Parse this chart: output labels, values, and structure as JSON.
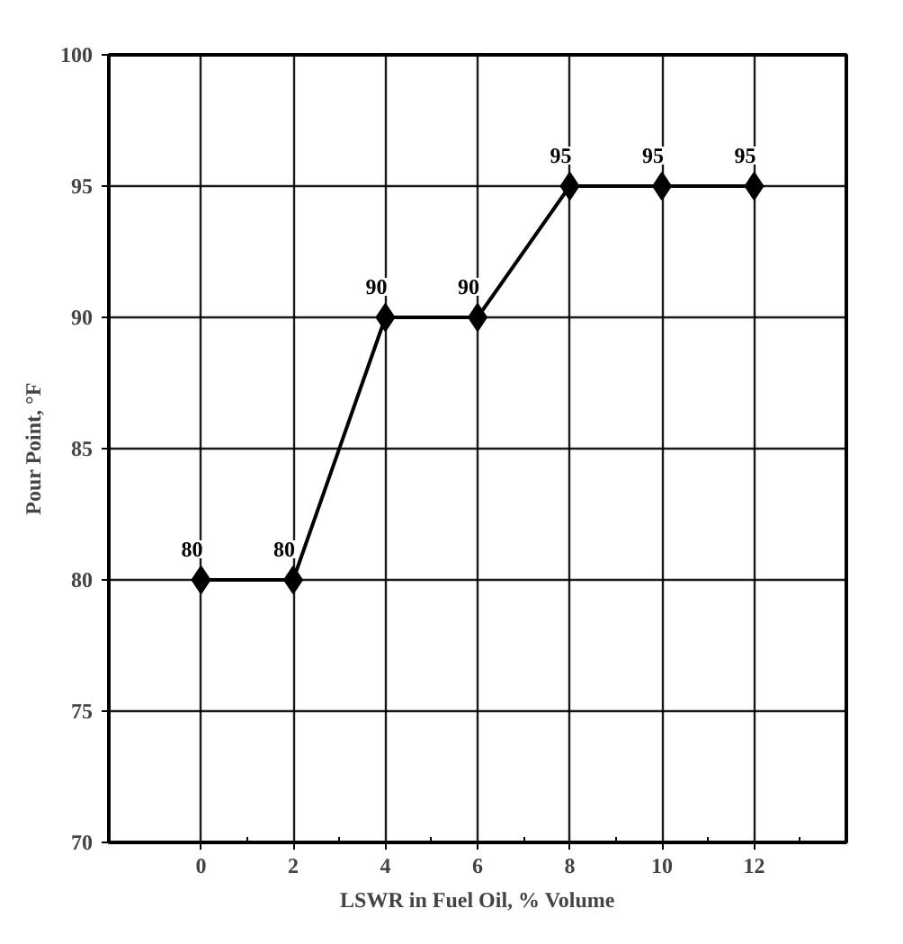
{
  "chart_data": {
    "type": "line",
    "xlabel": "LSWR in Fuel Oil, % Volume",
    "ylabel": "Pour Point, °F",
    "x": [
      0,
      2,
      4,
      6,
      8,
      10,
      12
    ],
    "series": [
      {
        "color": "#000000",
        "values": [
          80,
          80,
          90,
          90,
          95,
          95,
          95
        ]
      }
    ],
    "xlim": [
      -2,
      14
    ],
    "xticks": [
      0,
      {
        "value": 1,
        "label": null
      },
      2,
      {
        "value": 3,
        "label": null
      },
      4,
      {
        "value": 5,
        "label": null
      },
      6,
      {
        "value": 7,
        "label": null
      },
      8,
      {
        "value": 9,
        "label": null
      },
      10,
      {
        "value": 11,
        "label": null
      },
      12,
      {
        "value": 13,
        "label": null
      }
    ],
    "ylim": [
      70,
      100
    ],
    "yticks": [
      70,
      75,
      80,
      85,
      90,
      95,
      100
    ],
    "grid": true,
    "marker": "diamond",
    "line_style": "solid",
    "data_labels": true
  }
}
